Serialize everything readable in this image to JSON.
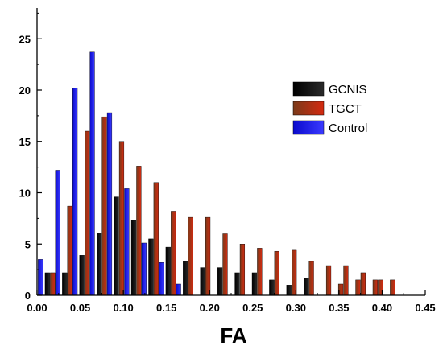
{
  "chart_data": {
    "type": "bar",
    "title": "",
    "xlabel": "FA",
    "ylabel": "",
    "xlim": [
      0.0,
      0.45
    ],
    "ylim": [
      0,
      28
    ],
    "xticks": [
      "0.00",
      "0.05",
      "0.10",
      "0.15",
      "0.20",
      "0.25",
      "0.30",
      "0.35",
      "0.40",
      "0.45"
    ],
    "yticks": [
      "0",
      "5",
      "10",
      "15",
      "20",
      "25"
    ],
    "legend_position": "right",
    "grid": false,
    "series": [
      {
        "name": "GCNIS",
        "color": "#000000",
        "x": [
          0.012,
          0.032,
          0.052,
          0.072,
          0.092,
          0.112,
          0.132,
          0.152,
          0.172,
          0.192,
          0.212,
          0.232,
          0.252,
          0.272,
          0.292,
          0.312
        ],
        "values": [
          2.2,
          2.2,
          3.9,
          6.1,
          9.6,
          7.3,
          5.5,
          4.7,
          3.3,
          2.7,
          2.7,
          2.2,
          2.2,
          1.5,
          1.0,
          1.7
        ]
      },
      {
        "name": "TGCT",
        "color": "#cc1a00",
        "x": [
          0.018,
          0.038,
          0.058,
          0.078,
          0.098,
          0.118,
          0.138,
          0.158,
          0.178,
          0.198,
          0.218,
          0.238,
          0.258,
          0.278,
          0.298,
          0.318,
          0.338,
          0.358,
          0.378,
          0.398
        ],
        "values": [
          2.2,
          8.7,
          16.0,
          17.4,
          15.0,
          12.6,
          11.0,
          8.2,
          7.6,
          7.6,
          6.0,
          5.0,
          4.6,
          4.3,
          4.4,
          3.3,
          2.9,
          2.9,
          2.2,
          1.5
        ]
      },
      {
        "name": "Control",
        "color": "#1a1aff",
        "x": [
          0.004,
          0.024,
          0.044,
          0.064,
          0.084,
          0.104,
          0.124,
          0.144,
          0.164
        ],
        "values": [
          3.5,
          12.2,
          20.2,
          23.7,
          17.8,
          10.4,
          5.1,
          3.2,
          1.1
        ]
      }
    ],
    "tgct_extra": {
      "x": [
        0.352,
        0.372,
        0.392,
        0.412
      ],
      "values": [
        1.1,
        1.5,
        1.5,
        1.5
      ]
    }
  }
}
